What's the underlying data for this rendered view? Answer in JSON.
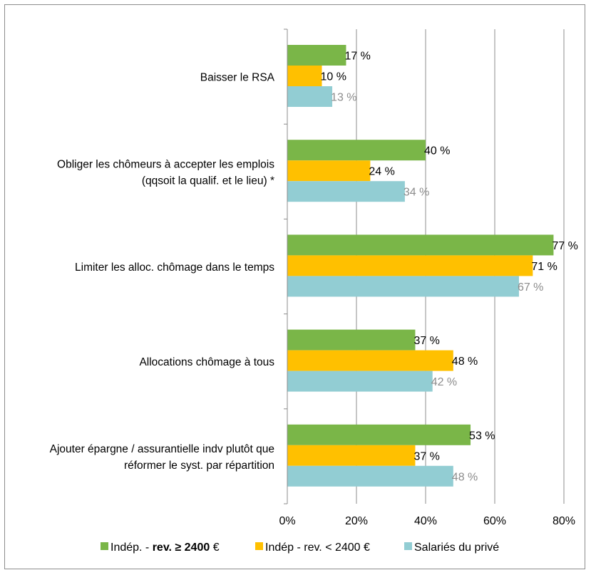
{
  "chart_data": {
    "type": "bar",
    "orientation": "horizontal",
    "categories": [
      [
        "Baisser le RSA"
      ],
      [
        "Obliger les chômeurs à accepter les emplois",
        "(qqsoit la qualif. et le lieu) *"
      ],
      [
        "Limiter les alloc. chômage dans le temps"
      ],
      [
        "Allocations chômage à tous"
      ],
      [
        "Ajouter épargne / assurantielle indv plutôt que",
        "réformer le syst. par répartition"
      ]
    ],
    "series": [
      {
        "name_parts": [
          "Indép. - ",
          "rev. ≥ 2400",
          " €"
        ],
        "color": "#7ab648",
        "label_color": "#000000",
        "values": [
          17,
          40,
          77,
          37,
          53
        ],
        "labels": [
          "17 %",
          "40 %",
          "77 %",
          "37 %",
          "53 %"
        ]
      },
      {
        "name_parts": [
          "Indép - rev. < 2400 €"
        ],
        "color": "#ffc000",
        "label_color": "#000000",
        "values": [
          10,
          24,
          71,
          48,
          37
        ],
        "labels": [
          "10 %",
          "24 %",
          "71 %",
          "48 %",
          "37 %"
        ]
      },
      {
        "name_parts": [
          "Salariés du privé"
        ],
        "color": "#92cdd3",
        "label_color": "#8c8c8c",
        "values": [
          13,
          34,
          67,
          42,
          48
        ],
        "labels": [
          "13 %",
          "34 %",
          "67 %",
          "42 %",
          "48 %"
        ]
      }
    ],
    "xlim": [
      0,
      80
    ],
    "xticks": [
      0,
      20,
      40,
      60,
      80
    ],
    "xtick_labels": [
      "0%",
      "20%",
      "40%",
      "60%",
      "80%"
    ],
    "grid": true,
    "legend": "bottom"
  }
}
